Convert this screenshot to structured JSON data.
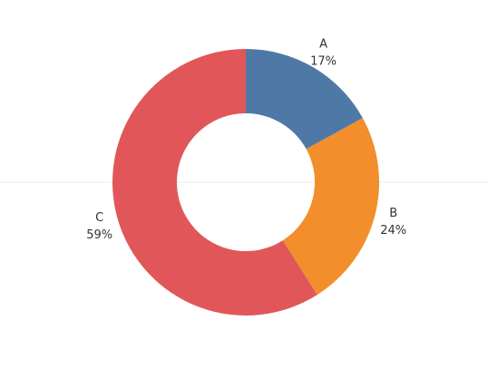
{
  "chart_data": {
    "type": "pie",
    "variant": "donut",
    "categories": [
      "A",
      "B",
      "C"
    ],
    "values": [
      17,
      24,
      59
    ],
    "labels": [
      "17%",
      "24%",
      "59%"
    ],
    "colors": {
      "A": "#4E79A7",
      "B": "#F28E2B",
      "C": "#E15759"
    },
    "background": "#ffffff",
    "guide_line_color": "#ececec"
  }
}
